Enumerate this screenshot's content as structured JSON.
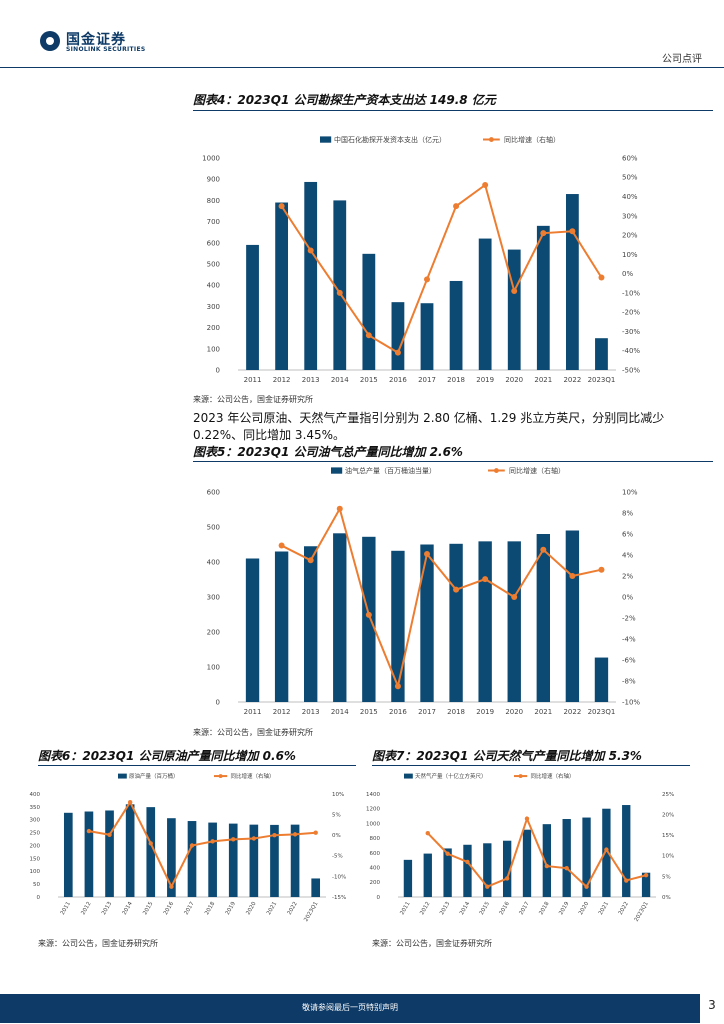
{
  "header": {
    "logo_cn": "国金证券",
    "logo_en": "SINOLINK SECURITIES",
    "report_type": "公司点评"
  },
  "colors": {
    "bar": "#0d4a73",
    "line": "#ed7d31",
    "brand": "#0d3a66"
  },
  "figures": {
    "fig4": {
      "title": "图表4：2023Q1 公司勘探生产资本支出达 149.8 亿元",
      "source": "来源：公司公告，国金证券研究所"
    },
    "fig5": {
      "title": "图表5：2023Q1 公司油气总产量同比增加 2.6%",
      "source": "来源：公司公告，国金证券研究所"
    },
    "fig6": {
      "title": "图表6：2023Q1 公司原油产量同比增加 0.6%",
      "source": "来源：公司公告，国金证券研究所"
    },
    "fig7": {
      "title": "图表7：2023Q1 公司天然气产量同比增加 5.3%",
      "source": "来源：公司公告，国金证券研究所"
    }
  },
  "paragraph": "2023 年公司原油、天然气产量指引分别为 2.80 亿桶、1.29 兆立方英尺，分别同比减少 0.22%、同比增加 3.45%。",
  "footer": {
    "disclaimer": "敬请参阅最后一页特别声明",
    "page": "3"
  },
  "chart_data": [
    {
      "id": "fig4",
      "type": "bar",
      "categories": [
        "2011",
        "2012",
        "2013",
        "2014",
        "2015",
        "2016",
        "2017",
        "2018",
        "2019",
        "2020",
        "2021",
        "2022",
        "2023Q1"
      ],
      "series": [
        {
          "name": "中国石化勘探开发资本支出（亿元）",
          "kind": "bar",
          "axis": "left",
          "values": [
            590,
            790,
            887,
            800,
            548,
            320,
            315,
            420,
            620,
            568,
            680,
            830,
            150
          ]
        },
        {
          "name": "同比增速（右轴）",
          "kind": "line",
          "axis": "right",
          "values": [
            null,
            35,
            12,
            -10,
            -32,
            -41,
            -3,
            35,
            46,
            -9,
            21,
            22,
            -2
          ]
        }
      ],
      "left_axis": {
        "min": 0,
        "max": 1000,
        "ticks": [
          "0",
          "100",
          "200",
          "300",
          "400",
          "500",
          "600",
          "700",
          "800",
          "900",
          "1000"
        ]
      },
      "right_axis": {
        "min": -50,
        "max": 60,
        "ticks": [
          "-50%",
          "-40%",
          "-30%",
          "-20%",
          "-10%",
          "0%",
          "10%",
          "20%",
          "30%",
          "40%",
          "50%",
          "60%"
        ]
      },
      "legend_position": "top-center"
    },
    {
      "id": "fig5",
      "type": "bar",
      "categories": [
        "2011",
        "2012",
        "2013",
        "2014",
        "2015",
        "2016",
        "2017",
        "2018",
        "2019",
        "2020",
        "2021",
        "2022",
        "2023Q1"
      ],
      "series": [
        {
          "name": "油气总产量（百万桶油当量）",
          "kind": "bar",
          "axis": "left",
          "values": [
            410,
            430,
            445,
            482,
            472,
            432,
            450,
            452,
            459,
            459,
            480,
            490,
            127
          ]
        },
        {
          "name": "同比增速（右轴）",
          "kind": "line",
          "axis": "right",
          "values": [
            null,
            4.9,
            3.5,
            8.4,
            -1.7,
            -8.5,
            4.1,
            0.7,
            1.7,
            0.0,
            4.5,
            2.0,
            2.6
          ]
        }
      ],
      "left_axis": {
        "min": 0,
        "max": 600,
        "ticks": [
          "0",
          "100",
          "200",
          "300",
          "400",
          "500",
          "600"
        ]
      },
      "right_axis": {
        "min": -10,
        "max": 10,
        "ticks": [
          "-10%",
          "-8%",
          "-6%",
          "-4%",
          "-2%",
          "0%",
          "2%",
          "4%",
          "6%",
          "8%",
          "10%"
        ]
      },
      "legend_position": "top-center"
    },
    {
      "id": "fig6",
      "type": "bar",
      "categories": [
        "2011",
        "2012",
        "2013",
        "2014",
        "2015",
        "2016",
        "2017",
        "2018",
        "2019",
        "2020",
        "2021",
        "2022",
        "2023Q1"
      ],
      "series": [
        {
          "name": "原油产量（百万桶）",
          "kind": "bar",
          "axis": "left",
          "values": [
            327,
            332,
            336,
            360,
            349,
            306,
            295,
            289,
            285,
            281,
            280,
            281,
            72
          ]
        },
        {
          "name": "同比增速（右轴）",
          "kind": "line",
          "axis": "right",
          "values": [
            null,
            1.0,
            0.1,
            8.0,
            -2.0,
            -12.5,
            -2.5,
            -1.5,
            -1.0,
            -0.8,
            0.0,
            0.2,
            0.6
          ]
        }
      ],
      "left_axis": {
        "min": 0,
        "max": 400,
        "ticks": [
          "0",
          "50",
          "100",
          "150",
          "200",
          "250",
          "300",
          "350",
          "400"
        ]
      },
      "right_axis": {
        "min": -15,
        "max": 10,
        "ticks": [
          "-15%",
          "-10%",
          "-5%",
          "0%",
          "5%",
          "10%"
        ]
      },
      "legend_position": "top-center"
    },
    {
      "id": "fig7",
      "type": "bar",
      "categories": [
        "2011",
        "2012",
        "2013",
        "2014",
        "2015",
        "2016",
        "2017",
        "2018",
        "2019",
        "2020",
        "2021",
        "2022",
        "2023Q1"
      ],
      "series": [
        {
          "name": "天然气产量（十亿立方英尺）",
          "kind": "bar",
          "axis": "left",
          "values": [
            505,
            590,
            660,
            710,
            730,
            765,
            915,
            990,
            1060,
            1080,
            1200,
            1250,
            330
          ]
        },
        {
          "name": "同比增速（右轴）",
          "kind": "line",
          "axis": "right",
          "values": [
            null,
            15.5,
            10.5,
            8.5,
            2.5,
            4.5,
            19.0,
            7.5,
            7.0,
            2.5,
            11.5,
            4.0,
            5.3
          ]
        }
      ],
      "left_axis": {
        "min": 0,
        "max": 1400,
        "ticks": [
          "0",
          "200",
          "400",
          "600",
          "800",
          "1000",
          "1200",
          "1400"
        ]
      },
      "right_axis": {
        "min": 0,
        "max": 25,
        "ticks": [
          "0%",
          "5%",
          "10%",
          "15%",
          "20%",
          "25%"
        ]
      },
      "legend_position": "top-center"
    }
  ]
}
